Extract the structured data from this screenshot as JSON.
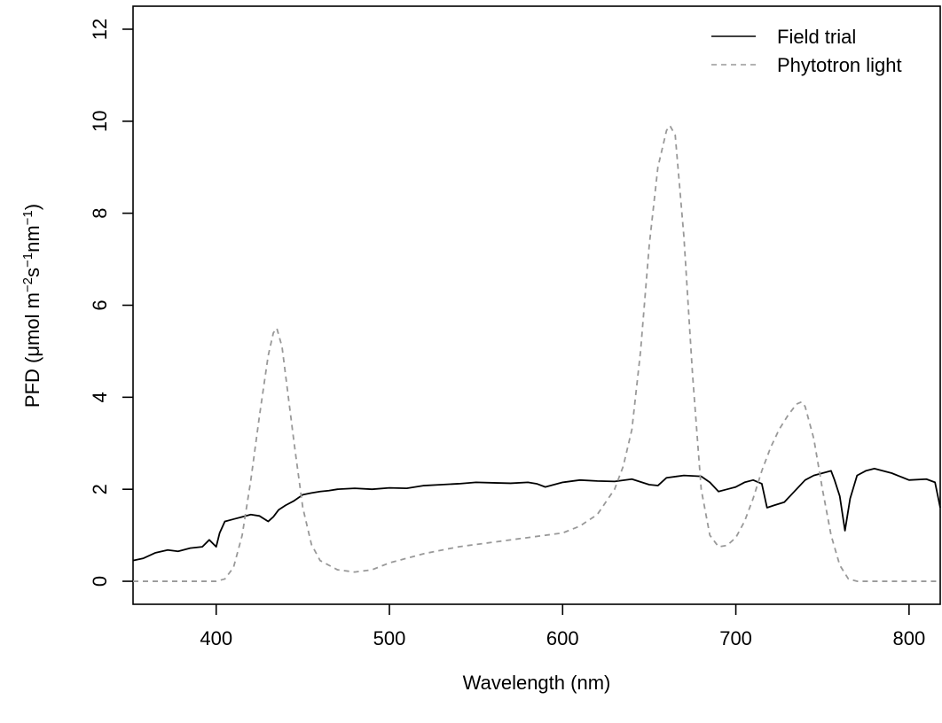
{
  "chart_data": {
    "type": "line",
    "title": "",
    "xlabel": "Wavelength (nm)",
    "ylabel": {
      "prefix": "PFD (μmol m",
      "sup1": "−2",
      "mid1": "s",
      "sup2": "−1",
      "mid2": "nm",
      "sup3": "−1",
      "suffix": ")"
    },
    "xlim": [
      352,
      818
    ],
    "ylim": [
      -0.5,
      12.5
    ],
    "xticks": [
      400,
      500,
      600,
      700,
      800
    ],
    "yticks": [
      0,
      2,
      4,
      6,
      8,
      10,
      12
    ],
    "grid": false,
    "legend_position": "top-right",
    "series": [
      {
        "name": "Field trial",
        "color": "#000000",
        "dash": "solid",
        "x": [
          352,
          358,
          365,
          372,
          378,
          385,
          392,
          396,
          400,
          402,
          405,
          410,
          415,
          420,
          425,
          430,
          433,
          436,
          440,
          445,
          450,
          455,
          460,
          465,
          470,
          480,
          490,
          500,
          510,
          520,
          530,
          540,
          550,
          560,
          570,
          580,
          585,
          590,
          600,
          610,
          620,
          630,
          640,
          650,
          655,
          660,
          670,
          680,
          685,
          690,
          695,
          700,
          705,
          710,
          715,
          718,
          722,
          728,
          735,
          740,
          745,
          750,
          755,
          757,
          760,
          763,
          766,
          770,
          775,
          780,
          790,
          800,
          810,
          815,
          818
        ],
        "y": [
          0.45,
          0.5,
          0.62,
          0.68,
          0.65,
          0.72,
          0.75,
          0.9,
          0.75,
          1.05,
          1.3,
          1.35,
          1.4,
          1.45,
          1.42,
          1.3,
          1.4,
          1.55,
          1.65,
          1.75,
          1.88,
          1.92,
          1.95,
          1.97,
          2.0,
          2.02,
          2.0,
          2.03,
          2.02,
          2.08,
          2.1,
          2.12,
          2.15,
          2.14,
          2.13,
          2.15,
          2.12,
          2.05,
          2.15,
          2.2,
          2.18,
          2.17,
          2.22,
          2.1,
          2.08,
          2.25,
          2.3,
          2.28,
          2.15,
          1.95,
          2.0,
          2.05,
          2.15,
          2.2,
          2.12,
          1.6,
          1.65,
          1.72,
          2.0,
          2.2,
          2.3,
          2.35,
          2.4,
          2.2,
          1.85,
          1.1,
          1.8,
          2.3,
          2.4,
          2.45,
          2.35,
          2.2,
          2.22,
          2.15,
          1.6
        ]
      },
      {
        "name": "Phytotron light",
        "color": "#999999",
        "dash": "dashed",
        "x": [
          352,
          400,
          405,
          410,
          415,
          420,
          425,
          430,
          433,
          435,
          438,
          440,
          445,
          450,
          455,
          460,
          470,
          480,
          490,
          500,
          520,
          540,
          560,
          580,
          600,
          610,
          620,
          630,
          635,
          640,
          645,
          650,
          655,
          660,
          662,
          665,
          670,
          675,
          680,
          685,
          690,
          695,
          700,
          705,
          710,
          715,
          720,
          725,
          730,
          735,
          738,
          740,
          745,
          750,
          755,
          760,
          765,
          770,
          780,
          800,
          818
        ],
        "y": [
          0.0,
          0.0,
          0.05,
          0.3,
          1.0,
          2.2,
          3.6,
          4.9,
          5.4,
          5.5,
          5.1,
          4.5,
          3.0,
          1.6,
          0.8,
          0.45,
          0.25,
          0.2,
          0.25,
          0.4,
          0.6,
          0.75,
          0.85,
          0.95,
          1.05,
          1.2,
          1.45,
          2.0,
          2.5,
          3.3,
          5.0,
          7.3,
          9.0,
          9.8,
          9.9,
          9.7,
          7.5,
          4.5,
          2.0,
          1.0,
          0.75,
          0.78,
          0.95,
          1.3,
          1.8,
          2.4,
          2.9,
          3.3,
          3.6,
          3.85,
          3.9,
          3.8,
          3.1,
          2.0,
          1.0,
          0.35,
          0.05,
          0.0,
          0.0,
          0.0,
          0.0
        ]
      }
    ]
  }
}
